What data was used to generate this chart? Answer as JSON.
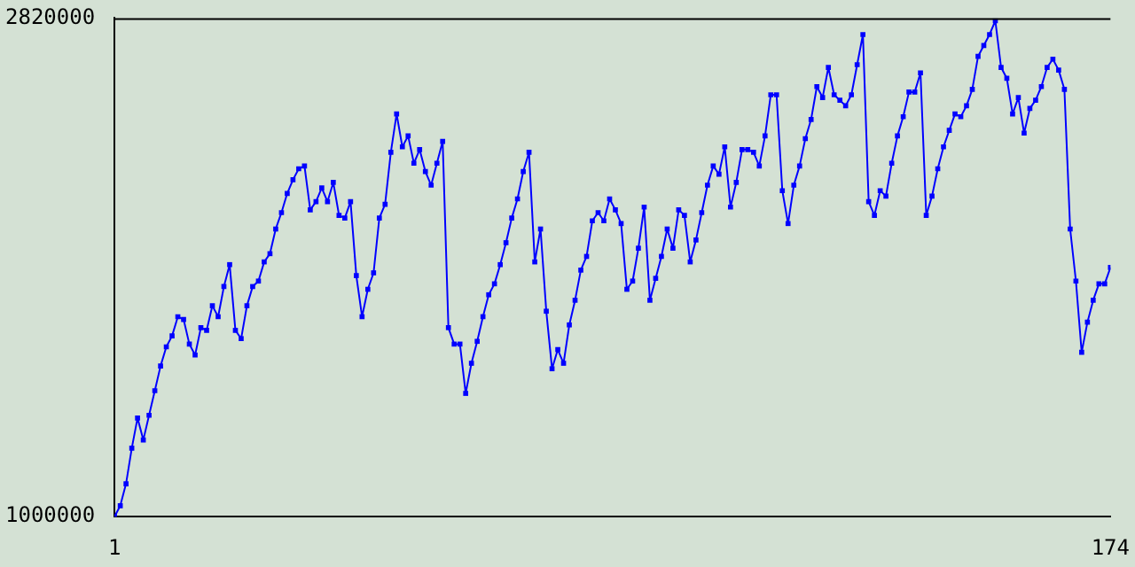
{
  "chart_data": {
    "type": "line",
    "x": [
      1,
      2,
      3,
      4,
      5,
      6,
      7,
      8,
      9,
      10,
      11,
      12,
      13,
      14,
      15,
      16,
      17,
      18,
      19,
      20,
      21,
      22,
      23,
      24,
      25,
      26,
      27,
      28,
      29,
      30,
      31,
      32,
      33,
      34,
      35,
      36,
      37,
      38,
      39,
      40,
      41,
      42,
      43,
      44,
      45,
      46,
      47,
      48,
      49,
      50,
      51,
      52,
      53,
      54,
      55,
      56,
      57,
      58,
      59,
      60,
      61,
      62,
      63,
      64,
      65,
      66,
      67,
      68,
      69,
      70,
      71,
      72,
      73,
      74,
      75,
      76,
      77,
      78,
      79,
      80,
      81,
      82,
      83,
      84,
      85,
      86,
      87,
      88,
      89,
      90,
      91,
      92,
      93,
      94,
      95,
      96,
      97,
      98,
      99,
      100,
      101,
      102,
      103,
      104,
      105,
      106,
      107,
      108,
      109,
      110,
      111,
      112,
      113,
      114,
      115,
      116,
      117,
      118,
      119,
      120,
      121,
      122,
      123,
      124,
      125,
      126,
      127,
      128,
      129,
      130,
      131,
      132,
      133,
      134,
      135,
      136,
      137,
      138,
      139,
      140,
      141,
      142,
      143,
      144,
      145,
      146,
      147,
      148,
      149,
      150,
      151,
      152,
      153,
      154,
      155,
      156,
      157,
      158,
      159,
      160,
      161,
      162,
      163,
      164,
      165,
      166,
      167,
      168,
      169,
      170,
      171,
      172,
      173,
      174
    ],
    "series": [
      {
        "color": "#0000ff",
        "values": [
          1000000,
          1040000,
          1120000,
          1250000,
          1360000,
          1280000,
          1370000,
          1460000,
          1550000,
          1620000,
          1660000,
          1730000,
          1720000,
          1630000,
          1590000,
          1690000,
          1680000,
          1770000,
          1730000,
          1840000,
          1920000,
          1680000,
          1650000,
          1770000,
          1840000,
          1860000,
          1930000,
          1960000,
          2050000,
          2110000,
          2180000,
          2230000,
          2270000,
          2280000,
          2120000,
          2150000,
          2200000,
          2150000,
          2220000,
          2100000,
          2090000,
          2150000,
          1880000,
          1730000,
          1830000,
          1890000,
          2090000,
          2140000,
          2330000,
          2470000,
          2350000,
          2390000,
          2290000,
          2340000,
          2260000,
          2210000,
          2290000,
          2370000,
          1690000,
          1630000,
          1630000,
          1450000,
          1560000,
          1640000,
          1730000,
          1810000,
          1850000,
          1920000,
          2000000,
          2090000,
          2160000,
          2260000,
          2330000,
          1930000,
          2050000,
          1750000,
          1540000,
          1610000,
          1560000,
          1700000,
          1790000,
          1900000,
          1950000,
          2080000,
          2110000,
          2080000,
          2160000,
          2120000,
          2070000,
          1830000,
          1860000,
          1980000,
          2130000,
          1790000,
          1870000,
          1950000,
          2050000,
          1980000,
          2120000,
          2100000,
          1930000,
          2010000,
          2110000,
          2210000,
          2280000,
          2250000,
          2350000,
          2130000,
          2220000,
          2340000,
          2340000,
          2330000,
          2280000,
          2390000,
          2540000,
          2540000,
          2190000,
          2070000,
          2210000,
          2280000,
          2380000,
          2450000,
          2570000,
          2530000,
          2640000,
          2540000,
          2520000,
          2500000,
          2540000,
          2650000,
          2760000,
          2150000,
          2100000,
          2190000,
          2170000,
          2290000,
          2390000,
          2460000,
          2550000,
          2550000,
          2620000,
          2100000,
          2170000,
          2270000,
          2350000,
          2410000,
          2470000,
          2460000,
          2500000,
          2560000,
          2680000,
          2720000,
          2760000,
          2810000,
          2640000,
          2600000,
          2470000,
          2530000,
          2400000,
          2490000,
          2520000,
          2570000,
          2640000,
          2670000,
          2630000,
          2560000,
          2050000,
          1860000,
          1600000,
          1710000,
          1790000,
          1850000,
          1850000,
          1910000
        ]
      }
    ],
    "xlim": [
      1,
      174
    ],
    "xticks": [
      1,
      174
    ],
    "ylim": [
      1000000,
      2820000
    ],
    "yticks": [
      1000000,
      2820000
    ],
    "grid": false,
    "legend": false,
    "marker": "square",
    "line_style": "solid"
  }
}
